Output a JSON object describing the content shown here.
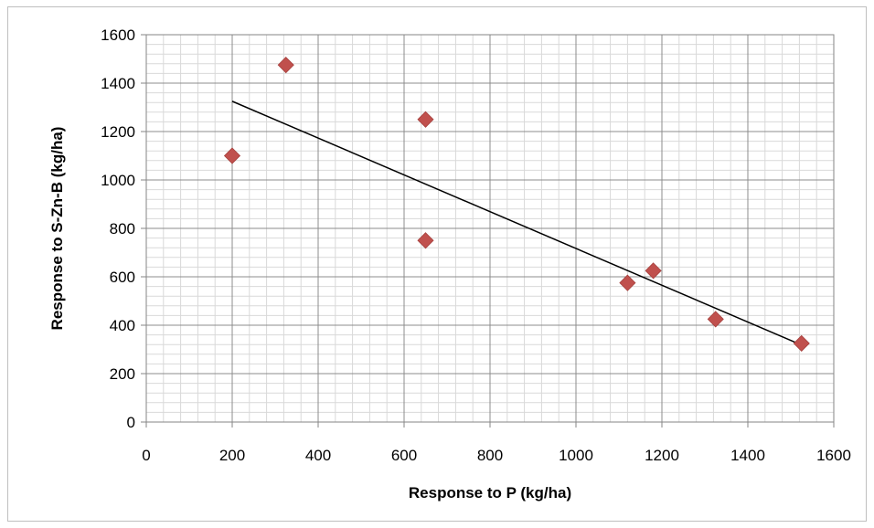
{
  "chart_data": {
    "type": "scatter",
    "title": "",
    "xlabel": "Response to P (kg/ha)",
    "ylabel": "Response to S-Zn-B (kg/ha)",
    "xlim": [
      0,
      1600
    ],
    "ylim": [
      0,
      1600
    ],
    "x_ticks": [
      0,
      200,
      400,
      600,
      800,
      1000,
      1200,
      1400,
      1600
    ],
    "y_ticks": [
      0,
      200,
      400,
      600,
      800,
      1000,
      1200,
      1400,
      1600
    ],
    "x_tick_labels": [
      "0",
      "200",
      "400",
      "600",
      "800",
      "1000",
      "1200",
      "1400",
      "1600"
    ],
    "y_tick_labels": [
      "0",
      "200",
      "400",
      "600",
      "800",
      "1000",
      "1200",
      "1400",
      "1600"
    ],
    "grid": true,
    "minor_grid": true,
    "legend": "none",
    "marker": "diamond",
    "marker_color": "#c0504d",
    "trendline_color": "#000000",
    "points": [
      {
        "x": 200,
        "y": 1100
      },
      {
        "x": 325,
        "y": 1475
      },
      {
        "x": 650,
        "y": 1250
      },
      {
        "x": 650,
        "y": 750
      },
      {
        "x": 1120,
        "y": 575
      },
      {
        "x": 1180,
        "y": 625
      },
      {
        "x": 1325,
        "y": 425
      },
      {
        "x": 1525,
        "y": 325
      }
    ],
    "trendline": {
      "x": [
        200,
        1525
      ],
      "y": [
        1325,
        318
      ]
    }
  }
}
